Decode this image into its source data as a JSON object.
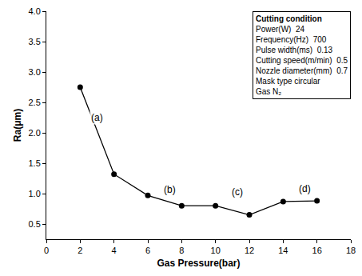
{
  "chart_data": {
    "type": "line",
    "x": [
      2,
      4,
      6,
      8,
      10,
      12,
      14,
      16
    ],
    "values": [
      2.75,
      1.32,
      0.97,
      0.8,
      0.8,
      0.65,
      0.87,
      0.88
    ],
    "color": "#000000",
    "marker": "circle",
    "line_style": "solid",
    "x_label": "Gas Pressure(bar)",
    "y_label": "Ra(μm)",
    "xlim": [
      0,
      18
    ],
    "xticks": [
      0,
      2,
      4,
      6,
      8,
      10,
      12,
      14,
      16,
      18
    ],
    "ylim": [
      0.25,
      4.0
    ],
    "yticks": [
      0.5,
      {
        "value": 1,
        "label": "1.0"
      },
      1.5,
      {
        "value": 2,
        "label": "2.0"
      },
      2.5,
      {
        "value": 3,
        "label": "3.0"
      },
      3.5,
      {
        "value": 4,
        "label": "4.0"
      }
    ],
    "grid": false,
    "annotations": [
      "(a)",
      "(b)",
      "(c)",
      "(d)"
    ],
    "inset": {
      "title": "Cutting condition",
      "lines": [
        "Power(W)  24",
        "Frequency(Hz)  700",
        "Pulse width(ms)  0.13",
        "Cutting speed(m/min)  0.5",
        "Nozzle diameter(mm)  0.7",
        "Mask type circular",
        "Gas N₂"
      ]
    }
  }
}
